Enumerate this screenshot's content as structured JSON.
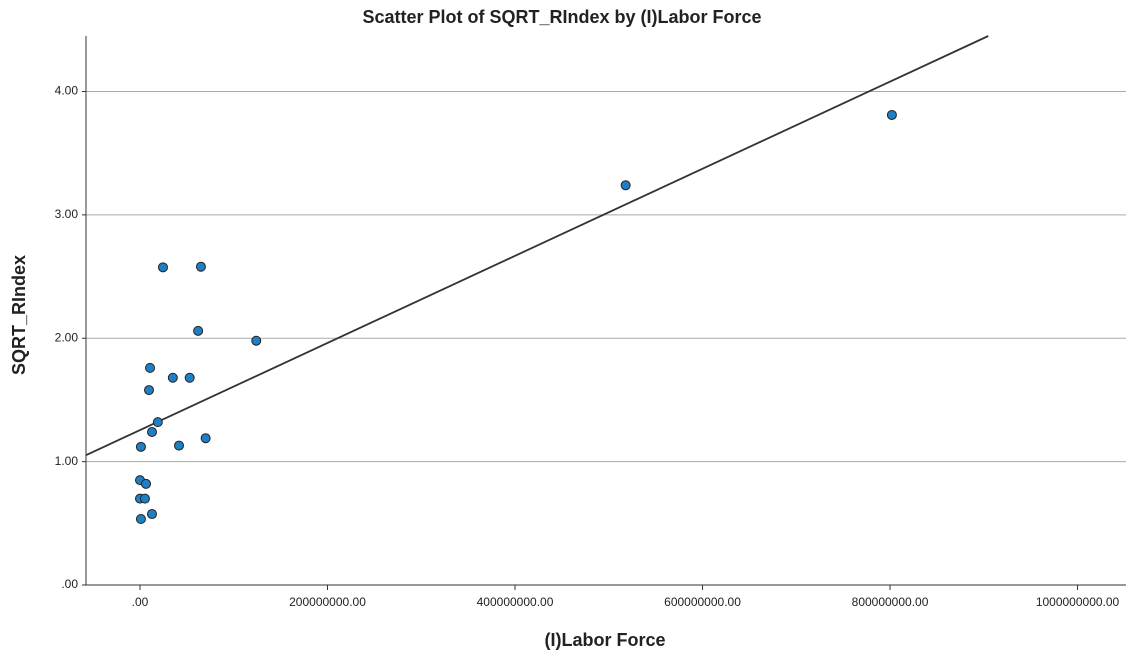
{
  "chart_data": {
    "type": "scatter",
    "title": "Scatter Plot of SQRT_RIndex by (I)Labor Force",
    "x_label": "(I)Labor Force",
    "y_label": "SQRT_RIndex",
    "series": [
      {
        "color": "#1f7fc4",
        "x": [
          24500000,
          65000000,
          62000000,
          124000000,
          10700000,
          35000000,
          53000000,
          9600000,
          19000000,
          12800000,
          70000000,
          41600000,
          1000000,
          0,
          6400000,
          0,
          5300000,
          12800000,
          1000000,
          518000000,
          802000000
        ],
        "values": [
          2.575,
          2.58,
          2.06,
          1.98,
          1.76,
          1.68,
          1.68,
          1.58,
          1.32,
          1.24,
          1.19,
          1.13,
          1.12,
          0.85,
          0.82,
          0.7,
          0.7,
          0.575,
          0.535,
          3.24,
          3.81
        ]
      }
    ],
    "fit_line": {
      "intercept": 1.256,
      "slope": 3.53e-09,
      "color": "#333333"
    },
    "xlim": [
      -57600000,
      1051700000
    ],
    "ylim": [
      0,
      4.45
    ],
    "xticks": [
      {
        "value": 0,
        "label": ".00"
      },
      {
        "value": 200000000,
        "label": "200000000.00"
      },
      {
        "value": 400000000,
        "label": "400000000.00"
      },
      {
        "value": 600000000,
        "label": "600000000.00"
      },
      {
        "value": 800000000,
        "label": "800000000.00"
      },
      {
        "value": 1000000000,
        "label": "1000000000.00"
      }
    ],
    "yticks": [
      {
        "value": 0,
        "label": ".00"
      },
      {
        "value": 1,
        "label": "1.00"
      },
      {
        "value": 2,
        "label": "2.00"
      },
      {
        "value": 3,
        "label": "3.00"
      },
      {
        "value": 4,
        "label": "4.00"
      }
    ],
    "grid": true
  }
}
